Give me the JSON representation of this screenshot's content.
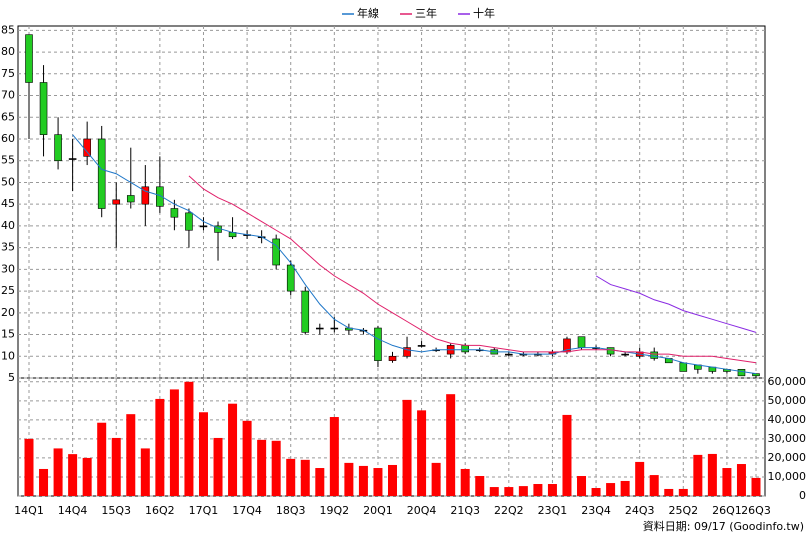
{
  "chart_data": [
    {
      "type": "candlestick",
      "categories": [
        "14Q1",
        null,
        null,
        "14Q4",
        null,
        null,
        "15Q3",
        null,
        null,
        "16Q2",
        null,
        null,
        "17Q1",
        null,
        null,
        "17Q4",
        null,
        null,
        "18Q3",
        null,
        null,
        "19Q2",
        null,
        null,
        "20Q1",
        null,
        null,
        "20Q4",
        null,
        null,
        "21Q3",
        null,
        null,
        "22Q2",
        null,
        null,
        "23Q1",
        null,
        null,
        "23Q4",
        null,
        null,
        "24Q3",
        null,
        null,
        "25Q2",
        null,
        null,
        "26Q1",
        null,
        "26Q3"
      ],
      "open": [
        84,
        73,
        61,
        55.5,
        56,
        60,
        45,
        47,
        45,
        49,
        44,
        43,
        40,
        40,
        38.5,
        38,
        37.5,
        37,
        31,
        25,
        16.5,
        16.5,
        16.5,
        16,
        16.5,
        9,
        10,
        12.5,
        11.5,
        10.5,
        12.5,
        11.5,
        11.5,
        10.5,
        10.5,
        10.5,
        10.5,
        11,
        14.5,
        12,
        12,
        10.5,
        10,
        11,
        9.5,
        8.5,
        8,
        7.5,
        7,
        7,
        6
      ],
      "high": [
        84,
        77,
        65,
        60,
        64,
        63,
        50,
        58,
        54,
        56,
        46,
        44,
        42,
        41,
        42,
        39,
        39,
        38,
        32,
        26,
        17.5,
        19,
        17.5,
        16.5,
        17,
        11,
        14.5,
        13.5,
        12,
        13,
        13,
        12,
        12,
        11,
        11,
        11,
        11.5,
        14.5,
        14.5,
        12.5,
        12,
        11,
        12,
        12,
        9.5,
        8.5,
        8,
        7.5,
        7,
        7,
        6
      ],
      "low": [
        60,
        56,
        53,
        48,
        54,
        42,
        35,
        44,
        40,
        43,
        39,
        35,
        39,
        32,
        37,
        37,
        36,
        30,
        24,
        15,
        15,
        15.5,
        15,
        15,
        7.5,
        8.5,
        9.5,
        12,
        11,
        9.5,
        10.5,
        11,
        10.5,
        10,
        10,
        10,
        10,
        10.5,
        11.5,
        11.5,
        10,
        10,
        9.5,
        9,
        8.5,
        6.5,
        6,
        6,
        6,
        5.5,
        5
      ],
      "close": [
        73,
        61,
        55,
        55.5,
        60,
        44,
        46,
        45.5,
        49,
        44.5,
        42,
        39,
        40,
        38.5,
        37.5,
        38,
        37.5,
        31,
        25,
        15.5,
        16.5,
        16.5,
        16,
        16,
        9,
        10,
        12,
        12.5,
        11.5,
        12.5,
        11,
        11.5,
        10.5,
        10.5,
        10.5,
        10.5,
        11,
        14,
        12,
        12,
        10.5,
        10.5,
        11,
        9.5,
        8.5,
        6.5,
        7,
        6.5,
        6.5,
        5.5,
        5.5
      ],
      "up_color": "#ff0000",
      "down_color": "#22cc22",
      "flat_color": "#000000",
      "series": [
        {
          "name": "年線",
          "color": "#1f77c8",
          "values": [
            null,
            null,
            null,
            61,
            57,
            53,
            52,
            50,
            48,
            47,
            45,
            43.5,
            41,
            39.5,
            38.5,
            38,
            37.5,
            35.5,
            31.5,
            26.5,
            22,
            18.5,
            16.5,
            16,
            14,
            12.5,
            11.5,
            11,
            11.5,
            11.5,
            11.5,
            11.5,
            11,
            11,
            10.5,
            10.5,
            10.5,
            11.5,
            12,
            12,
            11.5,
            11,
            10.5,
            10,
            9.5,
            8.5,
            8,
            7.5,
            7,
            6.5,
            6
          ]
        },
        {
          "name": "三年",
          "color": "#e0206a",
          "values": [
            null,
            null,
            null,
            null,
            null,
            null,
            null,
            null,
            null,
            null,
            null,
            51.5,
            48.5,
            46.5,
            45,
            43,
            41,
            39,
            37,
            34,
            31,
            28.5,
            26.5,
            24.5,
            22,
            20,
            18,
            16,
            14,
            13,
            12.5,
            12.5,
            12,
            11.5,
            11,
            11,
            11,
            11,
            11.5,
            11.5,
            11.5,
            11,
            11,
            10.5,
            10.5,
            10,
            10,
            10,
            9.5,
            9,
            8.5
          ]
        },
        {
          "name": "十年",
          "color": "#8a2be2",
          "values": [
            null,
            null,
            null,
            null,
            null,
            null,
            null,
            null,
            null,
            null,
            null,
            null,
            null,
            null,
            null,
            null,
            null,
            null,
            null,
            null,
            null,
            null,
            null,
            null,
            null,
            null,
            null,
            null,
            null,
            null,
            null,
            null,
            null,
            null,
            null,
            null,
            null,
            null,
            null,
            28.5,
            26.5,
            25.5,
            24.5,
            23,
            22,
            20.5,
            19.5,
            18.5,
            17.5,
            16.5,
            15.5
          ]
        }
      ],
      "ylim": [
        5,
        86
      ],
      "yticks": [
        5,
        10,
        15,
        20,
        25,
        30,
        35,
        40,
        45,
        50,
        55,
        60,
        65,
        70,
        75,
        80,
        85
      ],
      "grid": true
    },
    {
      "type": "bar",
      "color": "#ff0000",
      "values": [
        30000,
        14200,
        25000,
        22000,
        20000,
        38500,
        30500,
        43000,
        25000,
        51000,
        56000,
        60000,
        44000,
        30500,
        48500,
        39500,
        29500,
        29000,
        19500,
        19000,
        14700,
        41500,
        17400,
        15800,
        14700,
        16300,
        50500,
        45000,
        17400,
        53500,
        14200,
        10500,
        4700,
        4700,
        5200,
        6300,
        6300,
        42600,
        10500,
        4200,
        6800,
        7900,
        17900,
        11000,
        3700,
        3700,
        21600,
        22100,
        14700,
        16800,
        9500
      ],
      "ylim": [
        0,
        62000
      ],
      "yticks": [
        0,
        {
          "value": 10000,
          "label": "10,000"
        },
        {
          "value": 20000,
          "label": "20,000"
        },
        {
          "value": 30000,
          "label": "30,000"
        },
        {
          "value": 40000,
          "label": "40,000"
        },
        {
          "value": 50000,
          "label": "50,000"
        },
        {
          "value": 60000,
          "label": "60,000"
        }
      ],
      "grid": true
    }
  ],
  "footer": "資料日期: 09/17 (Goodinfo.tw)"
}
